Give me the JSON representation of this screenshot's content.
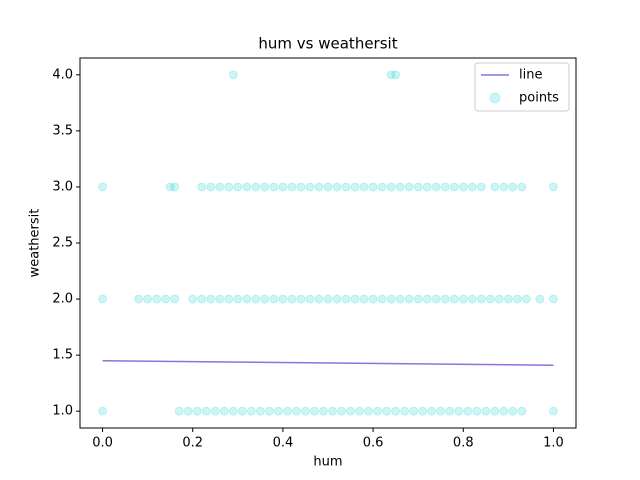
{
  "chart_data": {
    "type": "scatter",
    "title": "hum vs weathersit",
    "x_label": "hum",
    "y_label": "weathersit",
    "xlim": [
      -0.05,
      1.05
    ],
    "ylim": [
      0.85,
      4.15
    ],
    "xticks": [
      {
        "value": 0,
        "label": "0.0"
      },
      0.2,
      0.4,
      0.6,
      0.8,
      {
        "value": 1,
        "label": "1.0"
      }
    ],
    "yticks": [
      {
        "value": 1,
        "label": "1.0"
      },
      1.5,
      {
        "value": 2,
        "label": "2.0"
      },
      2.5,
      {
        "value": 3,
        "label": "3.0"
      },
      3.5,
      {
        "value": 4,
        "label": "4.0"
      }
    ],
    "legend": "upper right",
    "series": [
      {
        "name": "line",
        "kind": "line",
        "color": "#9370db",
        "x": [
          0,
          1
        ],
        "values": [
          1.45,
          1.41
        ]
      },
      {
        "name": "points",
        "kind": "points",
        "color": "#00ced1",
        "x": [
          0,
          0.17,
          0.19,
          0.21,
          0.23,
          0.25,
          0.27,
          0.29,
          0.31,
          0.33,
          0.35,
          0.37,
          0.39,
          0.41,
          0.43,
          0.45,
          0.47,
          0.49,
          0.51,
          0.53,
          0.55,
          0.57,
          0.59,
          0.61,
          0.63,
          0.65,
          0.67,
          0.69,
          0.71,
          0.73,
          0.75,
          0.77,
          0.79,
          0.81,
          0.83,
          0.85,
          0.87,
          0.89,
          0.91,
          0.93,
          1,
          0,
          0.08,
          0.1,
          0.12,
          0.14,
          0.16,
          0.2,
          0.22,
          0.24,
          0.26,
          0.28,
          0.3,
          0.32,
          0.34,
          0.36,
          0.38,
          0.4,
          0.42,
          0.44,
          0.46,
          0.48,
          0.5,
          0.52,
          0.54,
          0.56,
          0.58,
          0.6,
          0.62,
          0.64,
          0.66,
          0.68,
          0.7,
          0.72,
          0.74,
          0.76,
          0.78,
          0.8,
          0.82,
          0.84,
          0.86,
          0.88,
          0.9,
          0.92,
          0.94,
          0.97,
          1,
          0,
          0.15,
          0.16,
          0.22,
          0.24,
          0.26,
          0.28,
          0.3,
          0.32,
          0.34,
          0.36,
          0.38,
          0.4,
          0.42,
          0.44,
          0.46,
          0.48,
          0.5,
          0.52,
          0.54,
          0.56,
          0.58,
          0.6,
          0.62,
          0.64,
          0.66,
          0.68,
          0.7,
          0.72,
          0.74,
          0.76,
          0.78,
          0.8,
          0.82,
          0.84,
          0.87,
          0.89,
          0.91,
          0.93,
          1,
          0.29,
          0.64,
          0.65
        ],
        "values": [
          1,
          1,
          1,
          1,
          1,
          1,
          1,
          1,
          1,
          1,
          1,
          1,
          1,
          1,
          1,
          1,
          1,
          1,
          1,
          1,
          1,
          1,
          1,
          1,
          1,
          1,
          1,
          1,
          1,
          1,
          1,
          1,
          1,
          1,
          1,
          1,
          1,
          1,
          1,
          1,
          1,
          2,
          2,
          2,
          2,
          2,
          2,
          2,
          2,
          2,
          2,
          2,
          2,
          2,
          2,
          2,
          2,
          2,
          2,
          2,
          2,
          2,
          2,
          2,
          2,
          2,
          2,
          2,
          2,
          2,
          2,
          2,
          2,
          2,
          2,
          2,
          2,
          2,
          2,
          2,
          2,
          2,
          2,
          2,
          2,
          2,
          2,
          3,
          3,
          3,
          3,
          3,
          3,
          3,
          3,
          3,
          3,
          3,
          3,
          3,
          3,
          3,
          3,
          3,
          3,
          3,
          3,
          3,
          3,
          3,
          3,
          3,
          3,
          3,
          3,
          3,
          3,
          3,
          3,
          3,
          3,
          3,
          3,
          3,
          3,
          3,
          3,
          4,
          4,
          4
        ]
      }
    ]
  }
}
